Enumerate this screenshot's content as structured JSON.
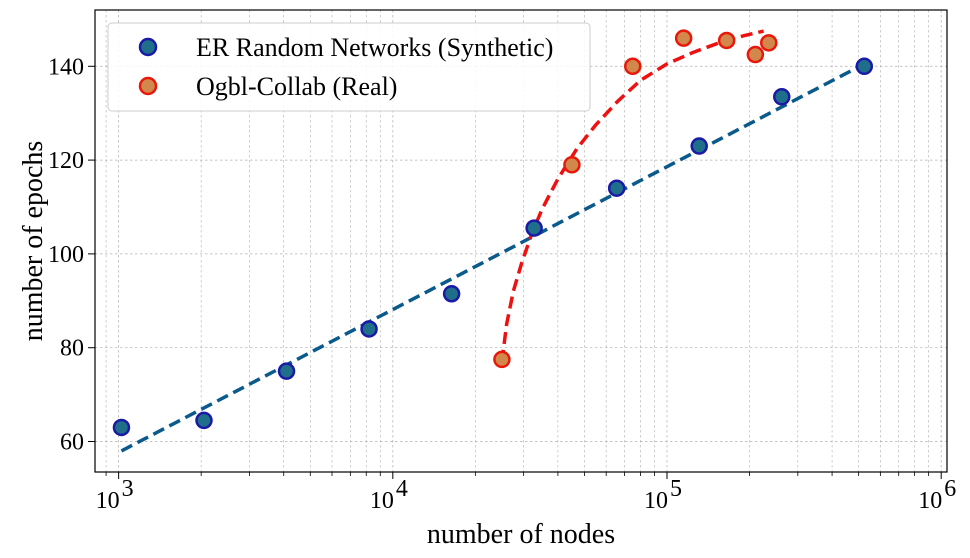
{
  "chart_data": {
    "type": "scatter",
    "xscale": "log",
    "xlabel": "number of nodes",
    "ylabel": "number of epochs",
    "xlim": [
      820,
      1050000
    ],
    "ylim": [
      53.5,
      152
    ],
    "grid": true,
    "legend_position": "top-left",
    "x_ticks": [
      {
        "value": 1000,
        "base": "10",
        "exp": "3"
      },
      {
        "value": 10000,
        "base": "10",
        "exp": "4"
      },
      {
        "value": 100000,
        "base": "10",
        "exp": "5"
      },
      {
        "value": 1000000,
        "base": "10",
        "exp": "6"
      }
    ],
    "y_ticks": [
      60,
      80,
      100,
      120,
      140
    ],
    "series": [
      {
        "name": "ER Random Networks (Synthetic)",
        "marker_fill": "#1f6f8b",
        "marker_edge": "#1a1aa6",
        "fit_color": "#0b5a8c",
        "points": [
          {
            "x": 1024,
            "y": 63
          },
          {
            "x": 2048,
            "y": 64.5
          },
          {
            "x": 4096,
            "y": 75
          },
          {
            "x": 8192,
            "y": 84
          },
          {
            "x": 16384,
            "y": 91.5
          },
          {
            "x": 32768,
            "y": 105.5
          },
          {
            "x": 65536,
            "y": 114
          },
          {
            "x": 131072,
            "y": 123
          },
          {
            "x": 262144,
            "y": 133.5
          },
          {
            "x": 524288,
            "y": 140
          }
        ],
        "fit_line": [
          {
            "x": 1024,
            "y": 58
          },
          {
            "x": 524288,
            "y": 140.5
          }
        ]
      },
      {
        "name": "Ogbl-Collab (Real)",
        "marker_fill": "#d2884c",
        "marker_edge": "#e8190a",
        "fit_color": "#ee1111",
        "points": [
          {
            "x": 25000,
            "y": 77.5
          },
          {
            "x": 45000,
            "y": 119
          },
          {
            "x": 75000,
            "y": 140
          },
          {
            "x": 115000,
            "y": 146
          },
          {
            "x": 165000,
            "y": 145.5
          },
          {
            "x": 210000,
            "y": 142.5
          },
          {
            "x": 235000,
            "y": 145
          }
        ],
        "fit_curve": [
          {
            "x": 25000,
            "y": 77
          },
          {
            "x": 26000,
            "y": 85
          },
          {
            "x": 27500,
            "y": 92
          },
          {
            "x": 29500,
            "y": 98
          },
          {
            "x": 32000,
            "y": 104
          },
          {
            "x": 35000,
            "y": 109.5
          },
          {
            "x": 40000,
            "y": 116
          },
          {
            "x": 47000,
            "y": 122.5
          },
          {
            "x": 55000,
            "y": 127.5
          },
          {
            "x": 66000,
            "y": 132.5
          },
          {
            "x": 80000,
            "y": 137
          },
          {
            "x": 100000,
            "y": 140.5
          },
          {
            "x": 125000,
            "y": 143
          },
          {
            "x": 155000,
            "y": 145
          },
          {
            "x": 190000,
            "y": 146.5
          },
          {
            "x": 225000,
            "y": 147.5
          }
        ]
      }
    ]
  }
}
